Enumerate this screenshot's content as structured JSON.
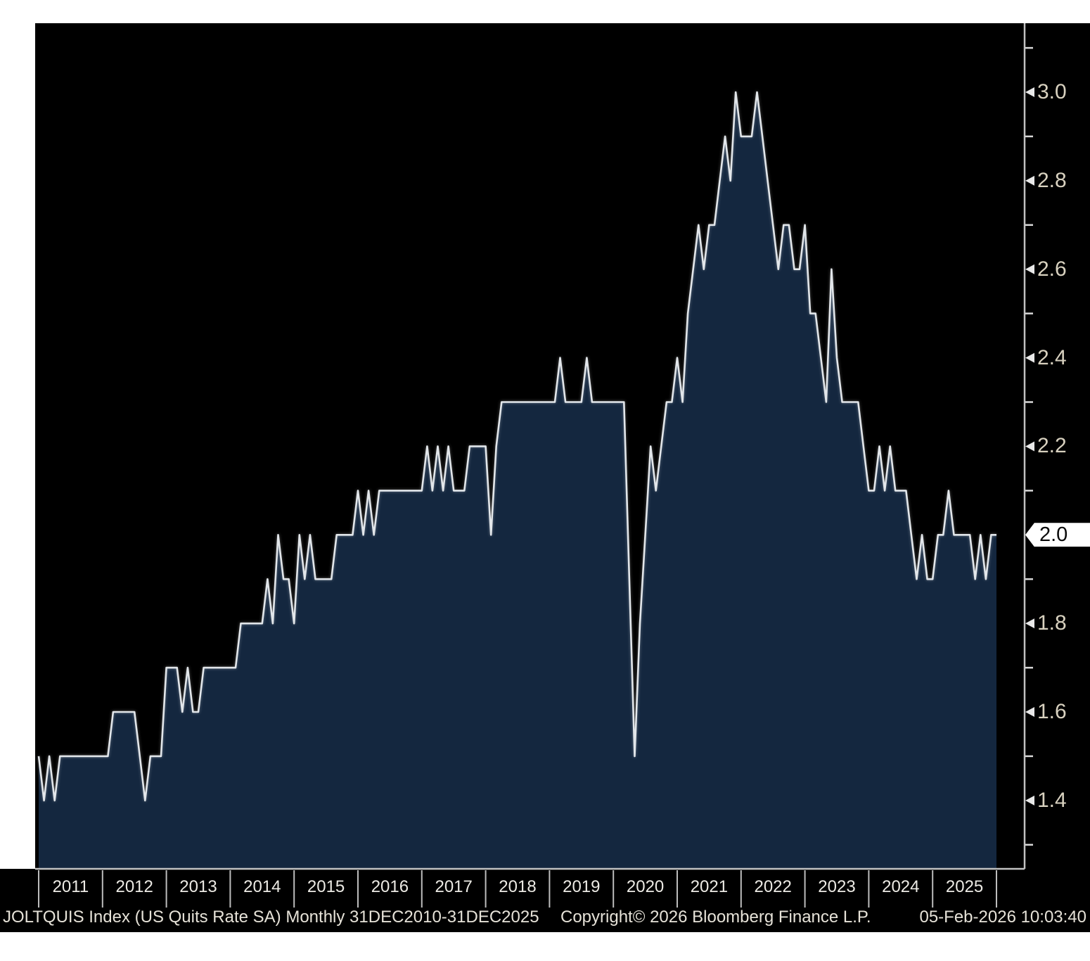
{
  "colors": {
    "page_bg": "#ffffff",
    "chart_bg": "#000000",
    "area_fill": "#14273f",
    "line": "#e2e6ea",
    "axis": "#c2c2c2",
    "tick": "#d8d8d8",
    "divider": "#bdbdbd",
    "y_label": "#d8d1bf",
    "x_label": "#eceae4",
    "footer_text": "#e6e2d8",
    "badge_bg": "#ffffff",
    "badge_text": "#0a0a0a"
  },
  "footer": {
    "left": "JOLTQUIS Index (US Quits Rate SA) Monthly 31DEC2010-31DEC2025",
    "center": "Copyright© 2026 Bloomberg Finance L.P.",
    "right": "05-Feb-2026 10:03:40"
  },
  "last_value_badge": "2.0",
  "chart_data": {
    "type": "area",
    "title": "JOLTQUIS Index (US Quits Rate SA)",
    "frequency": "Monthly",
    "date_range": "31DEC2010-31DEC2025",
    "start_month": "2010-12",
    "end_month": "2025-12",
    "ylabel": "",
    "xlabel": "",
    "ylim": [
      1.25,
      3.16
    ],
    "grid": false,
    "legend": "none",
    "y_ticks_labeled": [
      1.4,
      1.6,
      1.8,
      2.0,
      2.2,
      2.4,
      2.6,
      2.8,
      3.0
    ],
    "y_ticks_minor": [
      1.3,
      1.5,
      1.7,
      1.9,
      2.1,
      2.3,
      2.5,
      2.7,
      2.9,
      3.1
    ],
    "x_year_labels": [
      "2011",
      "2012",
      "2013",
      "2014",
      "2015",
      "2016",
      "2017",
      "2018",
      "2019",
      "2020",
      "2021",
      "2022",
      "2023",
      "2024",
      "2025"
    ],
    "last_value": 2.0,
    "values": [
      1.5,
      1.4,
      1.5,
      1.4,
      1.5,
      1.5,
      1.5,
      1.5,
      1.5,
      1.5,
      1.5,
      1.5,
      1.5,
      1.5,
      1.6,
      1.6,
      1.6,
      1.6,
      1.6,
      1.5,
      1.4,
      1.5,
      1.5,
      1.5,
      1.7,
      1.7,
      1.7,
      1.6,
      1.7,
      1.6,
      1.6,
      1.7,
      1.7,
      1.7,
      1.7,
      1.7,
      1.7,
      1.7,
      1.8,
      1.8,
      1.8,
      1.8,
      1.8,
      1.9,
      1.8,
      2.0,
      1.9,
      1.9,
      1.8,
      2.0,
      1.9,
      2.0,
      1.9,
      1.9,
      1.9,
      1.9,
      2.0,
      2.0,
      2.0,
      2.0,
      2.1,
      2.0,
      2.1,
      2.0,
      2.1,
      2.1,
      2.1,
      2.1,
      2.1,
      2.1,
      2.1,
      2.1,
      2.1,
      2.2,
      2.1,
      2.2,
      2.1,
      2.2,
      2.1,
      2.1,
      2.1,
      2.2,
      2.2,
      2.2,
      2.2,
      2.0,
      2.2,
      2.3,
      2.3,
      2.3,
      2.3,
      2.3,
      2.3,
      2.3,
      2.3,
      2.3,
      2.3,
      2.3,
      2.4,
      2.3,
      2.3,
      2.3,
      2.3,
      2.4,
      2.3,
      2.3,
      2.3,
      2.3,
      2.3,
      2.3,
      2.3,
      1.9,
      1.5,
      1.8,
      2.0,
      2.2,
      2.1,
      2.2,
      2.3,
      2.3,
      2.4,
      2.3,
      2.5,
      2.6,
      2.7,
      2.6,
      2.7,
      2.7,
      2.8,
      2.9,
      2.8,
      3.0,
      2.9,
      2.9,
      2.9,
      3.0,
      2.9,
      2.8,
      2.7,
      2.6,
      2.7,
      2.7,
      2.6,
      2.6,
      2.7,
      2.5,
      2.5,
      2.4,
      2.3,
      2.6,
      2.4,
      2.3,
      2.3,
      2.3,
      2.3,
      2.2,
      2.1,
      2.1,
      2.2,
      2.1,
      2.2,
      2.1,
      2.1,
      2.1,
      2.0,
      1.9,
      2.0,
      1.9,
      1.9,
      2.0,
      2.0,
      2.1,
      2.0,
      2.0,
      2.0,
      2.0,
      1.9,
      2.0,
      1.9,
      2.0,
      2.0
    ]
  }
}
